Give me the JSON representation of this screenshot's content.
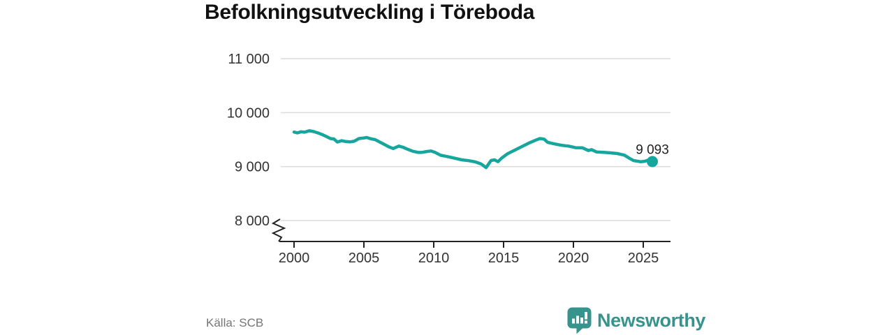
{
  "title": "Befolkningsutveckling i Töreboda",
  "source": "Källa: SCB",
  "brand": {
    "name": "Newsworthy",
    "icon": "newsworthy-bars-bubble-icon"
  },
  "colors": {
    "line": "#17a69d",
    "dot": "#17a69d",
    "grid": "#dcdcdc",
    "axis": "#222222",
    "tick_text": "#333333",
    "title_text": "#111111",
    "muted_text": "#757575",
    "brand_teal": "#37938c",
    "value_label": "#222222"
  },
  "chart_data": {
    "type": "line",
    "title": "Befolkningsutveckling i Töreboda",
    "xlabel": "",
    "ylabel": "",
    "source": "Källa: SCB",
    "x_domain": [
      1998.95,
      2027.0
    ],
    "y_domain_shown": [
      8000,
      11000
    ],
    "y_axis_break": true,
    "grid": true,
    "x_ticks": [
      2000,
      2005,
      2010,
      2015,
      2020,
      2025
    ],
    "x_tick_labels": [
      "2000",
      "2005",
      "2010",
      "2015",
      "2020",
      "2025"
    ],
    "y_ticks": [
      8000,
      9000,
      10000,
      11000
    ],
    "y_tick_labels": [
      "8 000",
      "9 000",
      "10 000",
      "11 000"
    ],
    "end_label": "9 093",
    "end_point": {
      "x": 2025.65,
      "y": 9093
    },
    "series": [
      {
        "name": "Befolkning",
        "points": [
          [
            2000.0,
            9640
          ],
          [
            2000.25,
            9625
          ],
          [
            2000.5,
            9645
          ],
          [
            2000.75,
            9638
          ],
          [
            2001.1,
            9665
          ],
          [
            2001.4,
            9650
          ],
          [
            2001.7,
            9625
          ],
          [
            2002.0,
            9595
          ],
          [
            2002.3,
            9560
          ],
          [
            2002.6,
            9520
          ],
          [
            2002.85,
            9512
          ],
          [
            2003.1,
            9455
          ],
          [
            2003.4,
            9480
          ],
          [
            2003.7,
            9465
          ],
          [
            2004.0,
            9458
          ],
          [
            2004.3,
            9470
          ],
          [
            2004.65,
            9520
          ],
          [
            2005.0,
            9530
          ],
          [
            2005.2,
            9540
          ],
          [
            2005.5,
            9515
          ],
          [
            2005.8,
            9500
          ],
          [
            2006.1,
            9460
          ],
          [
            2006.4,
            9420
          ],
          [
            2006.8,
            9365
          ],
          [
            2007.1,
            9335
          ],
          [
            2007.5,
            9380
          ],
          [
            2007.8,
            9358
          ],
          [
            2008.2,
            9315
          ],
          [
            2008.5,
            9285
          ],
          [
            2008.9,
            9263
          ],
          [
            2009.2,
            9265
          ],
          [
            2009.5,
            9280
          ],
          [
            2009.8,
            9290
          ],
          [
            2010.1,
            9262
          ],
          [
            2010.5,
            9210
          ],
          [
            2011.0,
            9185
          ],
          [
            2011.5,
            9155
          ],
          [
            2012.0,
            9125
          ],
          [
            2012.5,
            9110
          ],
          [
            2013.0,
            9085
          ],
          [
            2013.4,
            9048
          ],
          [
            2013.75,
            8980
          ],
          [
            2014.1,
            9112
          ],
          [
            2014.35,
            9125
          ],
          [
            2014.6,
            9090
          ],
          [
            2014.85,
            9155
          ],
          [
            2015.3,
            9240
          ],
          [
            2015.8,
            9305
          ],
          [
            2016.3,
            9370
          ],
          [
            2016.8,
            9435
          ],
          [
            2017.3,
            9490
          ],
          [
            2017.6,
            9520
          ],
          [
            2017.9,
            9510
          ],
          [
            2018.15,
            9450
          ],
          [
            2018.65,
            9420
          ],
          [
            2019.15,
            9395
          ],
          [
            2019.65,
            9380
          ],
          [
            2020.15,
            9350
          ],
          [
            2020.65,
            9348
          ],
          [
            2021.07,
            9298
          ],
          [
            2021.3,
            9315
          ],
          [
            2021.65,
            9272
          ],
          [
            2022.15,
            9264
          ],
          [
            2022.65,
            9255
          ],
          [
            2023.15,
            9242
          ],
          [
            2023.65,
            9212
          ],
          [
            2024.0,
            9155
          ],
          [
            2024.3,
            9113
          ],
          [
            2024.8,
            9091
          ],
          [
            2025.1,
            9098
          ],
          [
            2025.35,
            9120
          ],
          [
            2025.65,
            9093
          ]
        ]
      }
    ]
  }
}
